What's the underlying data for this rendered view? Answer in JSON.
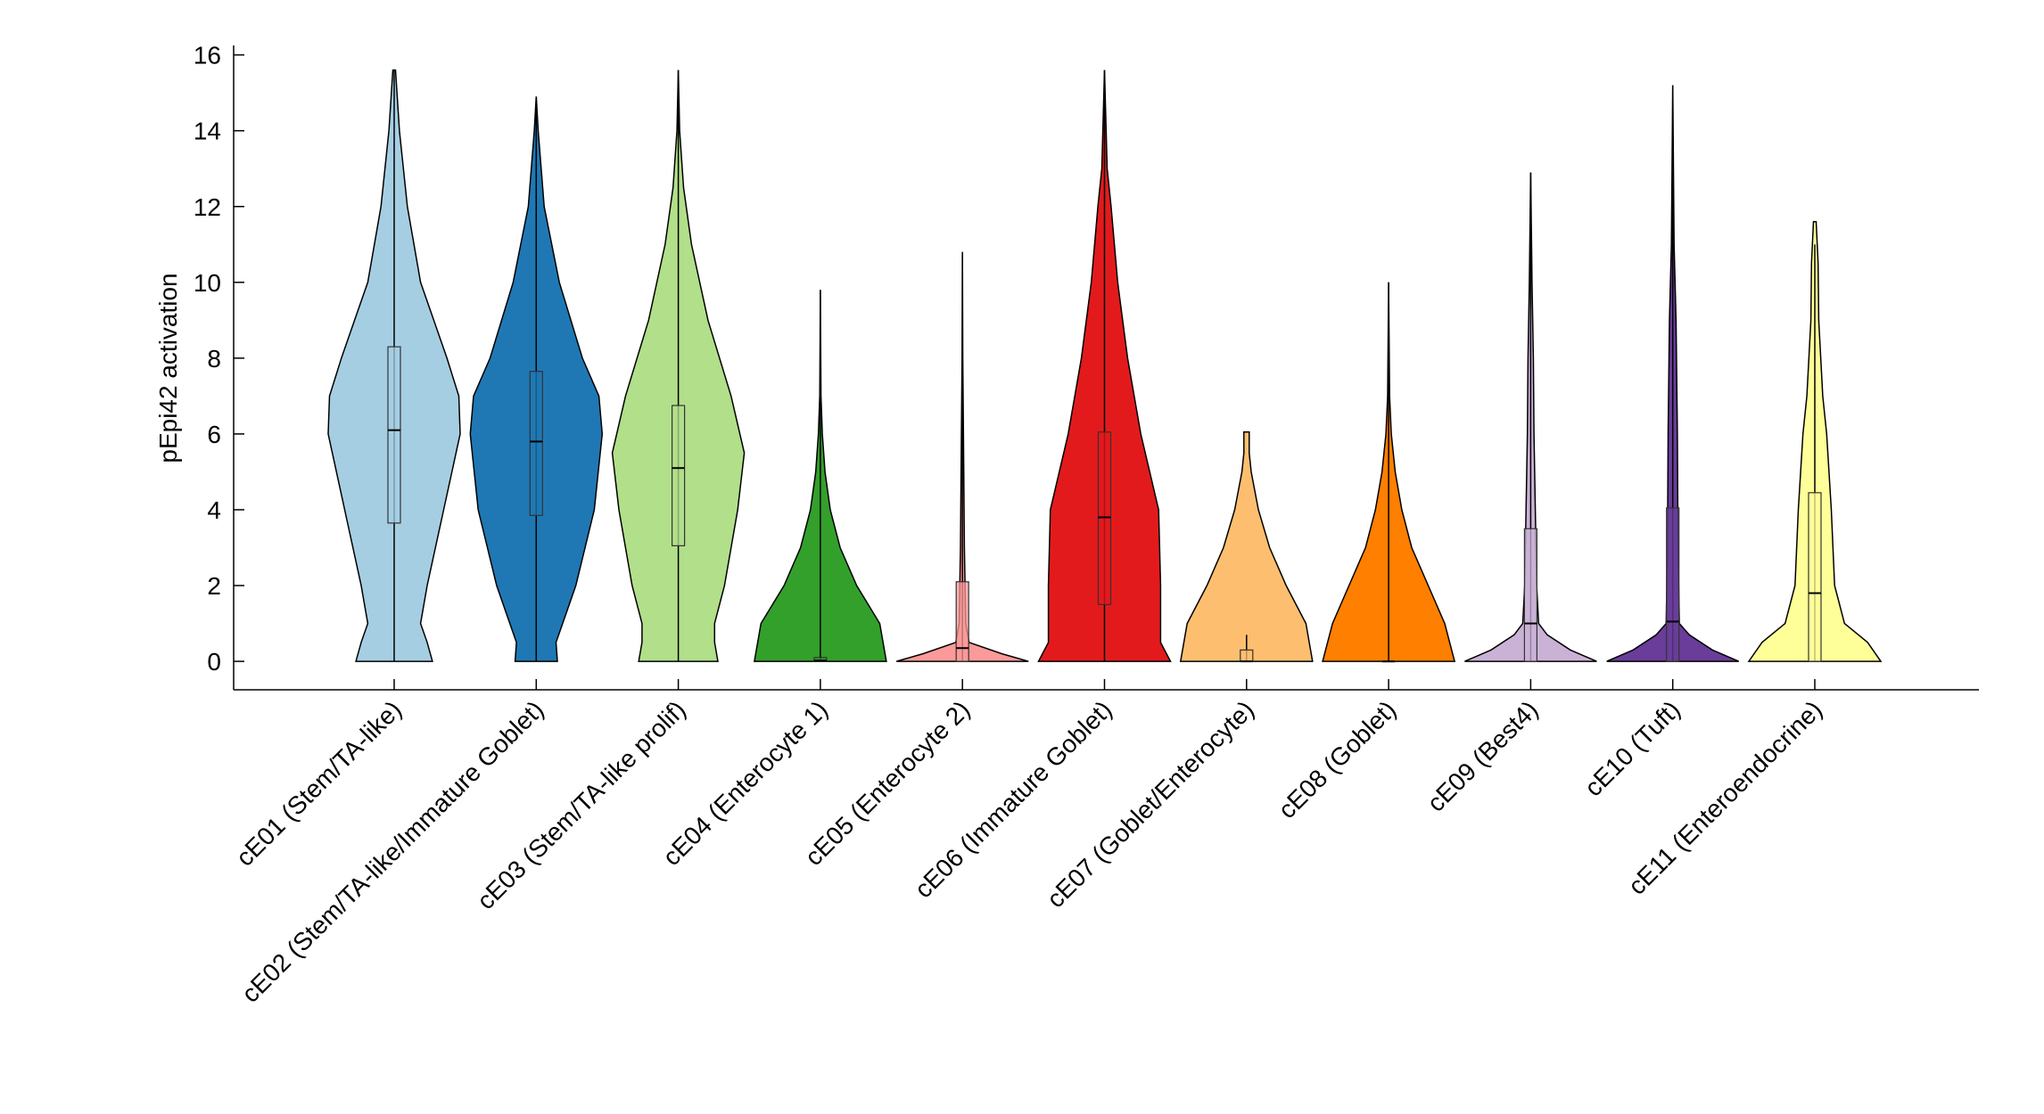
{
  "chart_data": {
    "type": "violin",
    "y_label": "pEpi42 activation",
    "ylim": [
      -0.75,
      16.25
    ],
    "yticks": [
      0,
      2,
      4,
      6,
      8,
      10,
      12,
      14,
      16
    ],
    "grid": false,
    "categories": [
      "cE01 (Stem/TA-like)",
      "cE02 (Stem/TA-like/Immature Goblet)",
      "cE03 (Stem/TA-like prolif)",
      "cE04 (Enterocyte 1)",
      "cE05 (Enterocyte 2)",
      "cE06 (Immature Goblet)",
      "cE07 (Goblet/Enterocyte)",
      "cE08 (Goblet)",
      "cE09 (Best4)",
      "cE10 (Tuft)",
      "cE11 (Enteroendocrine)"
    ],
    "series": [
      {
        "color": "#a6cee3",
        "density_y": [
          0,
          0.5,
          1,
          2,
          4,
          6,
          7,
          8,
          9,
          10,
          12,
          14,
          15.6
        ],
        "density_w": [
          0.58,
          0.5,
          0.4,
          0.5,
          0.75,
          1.0,
          0.98,
          0.8,
          0.6,
          0.4,
          0.2,
          0.08,
          0.02
        ],
        "whisker_low": 0,
        "q1": 3.65,
        "median": 6.1,
        "q3": 8.3,
        "whisker_high": 15.6
      },
      {
        "color": "#1f78b4",
        "density_y": [
          0,
          0.5,
          1,
          2,
          4,
          6,
          7,
          8,
          10,
          12,
          14,
          14.9
        ],
        "density_w": [
          0.32,
          0.3,
          0.4,
          0.6,
          0.88,
          1.0,
          0.95,
          0.7,
          0.35,
          0.12,
          0.03,
          0
        ],
        "whisker_low": 0,
        "q1": 3.85,
        "median": 5.8,
        "q3": 7.65,
        "whisker_high": 14.9
      },
      {
        "color": "#b2df8a",
        "density_y": [
          0,
          0.5,
          1,
          2,
          4,
          5.5,
          7,
          9,
          11,
          12.5,
          14,
          15.6
        ],
        "density_w": [
          0.6,
          0.55,
          0.55,
          0.7,
          0.9,
          1.0,
          0.8,
          0.45,
          0.2,
          0.08,
          0.02,
          0
        ],
        "whisker_low": 0,
        "q1": 3.05,
        "median": 5.1,
        "q3": 6.75,
        "whisker_high": 15.6
      },
      {
        "color": "#33a02c",
        "density_y": [
          0,
          1,
          2,
          3,
          4,
          5,
          6,
          7,
          9.8
        ],
        "density_w": [
          1.0,
          0.9,
          0.55,
          0.3,
          0.15,
          0.07,
          0.03,
          0.01,
          0
        ],
        "whisker_low": 0,
        "q1": 0,
        "median": 0.02,
        "q3": 0.1,
        "whisker_high": 9.8
      },
      {
        "color": "#fb9a99",
        "density_y": [
          0,
          0.2,
          0.5,
          1,
          3,
          5,
          8,
          10.8
        ],
        "density_w": [
          1.0,
          0.6,
          0.1,
          0.05,
          0.03,
          0.02,
          0.005,
          0
        ],
        "whisker_low": 0,
        "q1": 0,
        "median": 0.35,
        "q3": 2.1,
        "whisker_high": 10.8
      },
      {
        "color": "#e31a1c",
        "density_y": [
          0,
          0.5,
          1,
          2,
          4,
          6,
          8,
          10,
          12,
          13,
          15.6
        ],
        "density_w": [
          1.0,
          0.85,
          0.85,
          0.85,
          0.82,
          0.55,
          0.35,
          0.2,
          0.1,
          0.04,
          0
        ],
        "whisker_low": 0,
        "q1": 1.5,
        "median": 3.8,
        "q3": 6.05,
        "whisker_high": 15.6
      },
      {
        "color": "#fdbf6f",
        "density_y": [
          0,
          1,
          2,
          3,
          4,
          5,
          5.5,
          6.05
        ],
        "density_w": [
          1.0,
          0.9,
          0.6,
          0.35,
          0.18,
          0.07,
          0.04,
          0.04
        ],
        "whisker_low": 0,
        "q1": 0,
        "median": 0,
        "q3": 0.3,
        "whisker_high": 0.7
      },
      {
        "color": "#ff7f00",
        "density_y": [
          0,
          1,
          2,
          3,
          4,
          5,
          6,
          7,
          10
        ],
        "density_w": [
          1.0,
          0.85,
          0.6,
          0.35,
          0.2,
          0.1,
          0.04,
          0.015,
          0
        ],
        "whisker_low": 0,
        "q1": 0,
        "median": 0,
        "q3": 0,
        "whisker_high": 10
      },
      {
        "color": "#cab2d6",
        "density_y": [
          0,
          0.3,
          0.7,
          1,
          2,
          4,
          6,
          8,
          10,
          12.9
        ],
        "density_w": [
          1.0,
          0.6,
          0.25,
          0.12,
          0.09,
          0.07,
          0.05,
          0.04,
          0.02,
          0
        ],
        "whisker_low": 0,
        "q1": 0,
        "median": 1.0,
        "q3": 3.5,
        "whisker_high": 12.9
      },
      {
        "color": "#6a3d9a",
        "density_y": [
          0,
          0.3,
          0.7,
          1,
          3,
          6,
          9,
          11,
          15.2
        ],
        "density_w": [
          1.0,
          0.6,
          0.25,
          0.1,
          0.08,
          0.07,
          0.05,
          0.02,
          0
        ],
        "whisker_low": 0,
        "q1": 0,
        "median": 1.05,
        "q3": 4.05,
        "whisker_high": 15.2
      },
      {
        "color": "#ffff99",
        "density_y": [
          0,
          0.5,
          1,
          2,
          4,
          6,
          7,
          9,
          10.5,
          11.6
        ],
        "density_w": [
          1.0,
          0.8,
          0.45,
          0.3,
          0.25,
          0.18,
          0.12,
          0.06,
          0.05,
          0.02
        ],
        "whisker_low": 0,
        "q1": 0,
        "median": 1.8,
        "q3": 4.45,
        "whisker_high": 11.0
      }
    ]
  }
}
